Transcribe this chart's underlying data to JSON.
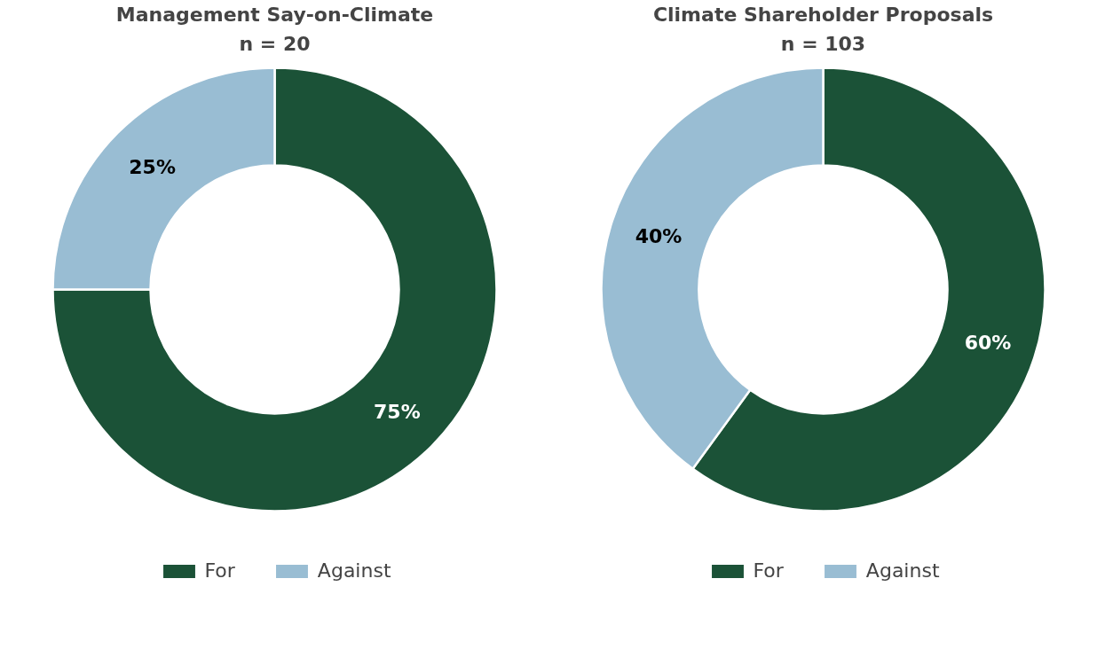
{
  "chart_data": [
    {
      "type": "donut",
      "title": "Management Say-on-Climate",
      "subtitle": "n = 20",
      "categories": [
        "For",
        "Against"
      ],
      "values": [
        75,
        25
      ],
      "colors": [
        "#1b5237",
        "#99bdd3"
      ],
      "value_labels": [
        "75%",
        "25%"
      ],
      "legend": "bottom"
    },
    {
      "type": "donut",
      "title": "Climate Shareholder Proposals",
      "subtitle": "n = 103",
      "categories": [
        "For",
        "Against"
      ],
      "values": [
        60,
        40
      ],
      "colors": [
        "#1b5237",
        "#99bdd3"
      ],
      "value_labels": [
        "60%",
        "40%"
      ],
      "legend": "bottom"
    }
  ]
}
